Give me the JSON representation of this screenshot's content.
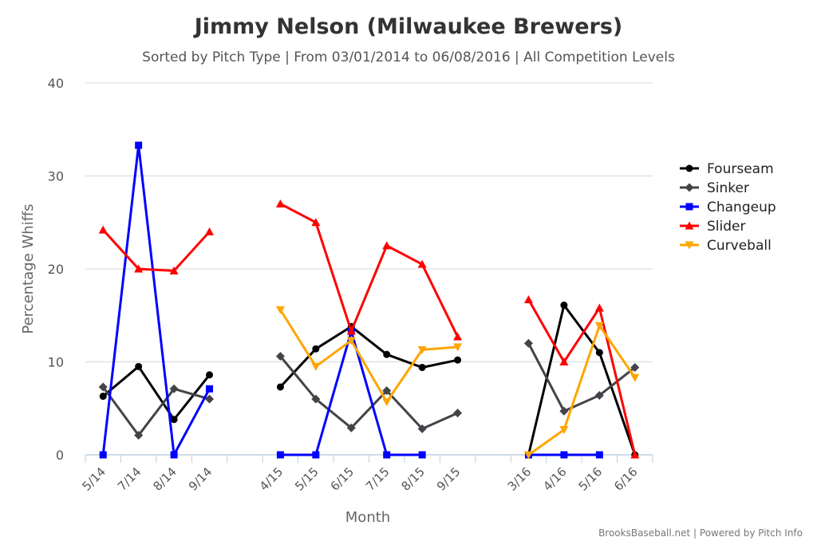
{
  "chart_data": {
    "type": "line",
    "title": "Jimmy Nelson (Milwaukee Brewers)",
    "subtitle": "Sorted by Pitch Type | From 03/01/2014 to 06/08/2016 | All Competition Levels",
    "xlabel": "Month",
    "ylabel": "Percentage Whiffs",
    "ylim": [
      0,
      40
    ],
    "yticks": [
      "0",
      "10",
      "20",
      "30",
      "40"
    ],
    "grid": true,
    "legend_position": "right",
    "categories": [
      "5/14",
      "7/14",
      "8/14",
      "9/14",
      "",
      "4/15",
      "5/15",
      "6/15",
      "7/15",
      "8/15",
      "9/15",
      "",
      "3/16",
      "4/16",
      "5/16",
      "6/16"
    ],
    "series": [
      {
        "name": "Fourseam",
        "color": "#000000",
        "marker": "circle",
        "values": [
          6.3,
          9.5,
          3.8,
          8.6,
          null,
          7.3,
          11.4,
          13.8,
          10.8,
          9.4,
          10.2,
          null,
          0,
          16.1,
          11.0,
          0
        ]
      },
      {
        "name": "Sinker",
        "color": "#434348",
        "marker": "diamond",
        "values": [
          7.3,
          2.1,
          7.1,
          6.0,
          null,
          10.6,
          6.0,
          2.9,
          6.9,
          2.8,
          4.5,
          null,
          12.0,
          4.7,
          6.4,
          9.4
        ]
      },
      {
        "name": "Changeup",
        "color": "#0000ff",
        "marker": "square",
        "values": [
          0,
          33.3,
          0,
          7.1,
          null,
          0,
          0,
          13.3,
          0,
          0,
          null,
          null,
          0,
          0,
          0,
          null
        ]
      },
      {
        "name": "Slider",
        "color": "#ff0000",
        "marker": "triangle",
        "values": [
          24.2,
          20.0,
          19.8,
          24.0,
          null,
          27.0,
          25.0,
          13.3,
          22.5,
          20.5,
          12.7,
          null,
          16.7,
          10.0,
          15.8,
          0
        ]
      },
      {
        "name": "Curveball",
        "color": "#ffa500",
        "marker": "triangle-down",
        "values": [
          null,
          null,
          null,
          null,
          null,
          15.6,
          9.5,
          12.3,
          5.7,
          11.3,
          11.6,
          null,
          0,
          2.7,
          13.9,
          8.3
        ]
      }
    ]
  },
  "credits": "BrooksBaseball.net | Powered by Pitch Info"
}
